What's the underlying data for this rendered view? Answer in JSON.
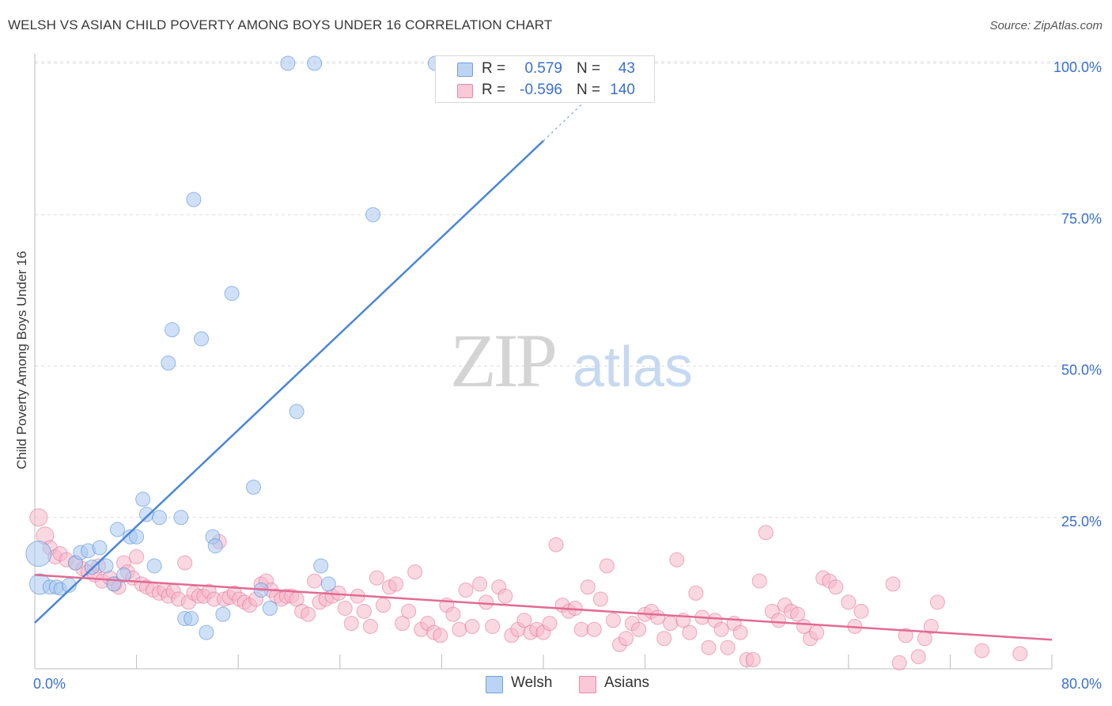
{
  "header": {
    "title": "WELSH VS ASIAN CHILD POVERTY AMONG BOYS UNDER 16 CORRELATION CHART",
    "source": "Source: ZipAtlas.com"
  },
  "watermark": {
    "zip": "ZIP",
    "atlas": "atlas"
  },
  "stats": {
    "welsh": {
      "r_label": "R =",
      "r_value": "0.579",
      "n_label": "N =",
      "n_value": "43",
      "color": "#a9c8f0"
    },
    "asians": {
      "r_label": "R =",
      "r_value": "-0.596",
      "n_label": "N =",
      "n_value": "140",
      "color": "#f6b8cb"
    }
  },
  "legend": {
    "welsh": "Welsh",
    "asians": "Asians"
  },
  "chart_data": {
    "type": "scatter",
    "title": "WELSH VS ASIAN CHILD POVERTY AMONG BOYS UNDER 16 CORRELATION CHART",
    "xlabel": "",
    "ylabel": "Child Poverty Among Boys Under 16",
    "xlim": [
      0,
      80
    ],
    "ylim": [
      0,
      105
    ],
    "x_tick_labels": [
      "0.0%",
      "80.0%"
    ],
    "y_tick_values": [
      25,
      50,
      75,
      100
    ],
    "y_tick_labels": [
      "25.0%",
      "50.0%",
      "75.0%",
      "100.0%"
    ],
    "grid": "horizontal dashed",
    "legend_position": "bottom-center",
    "series": [
      {
        "name": "Welsh",
        "color": "#4a86d8",
        "fill": "#a9c8f0",
        "trend": {
          "x": [
            0,
            40
          ],
          "y": [
            7.6,
            87.2
          ],
          "dashed_to": [
            45,
            97.2
          ]
        },
        "points": [
          [
            0.3,
            19,
            16
          ],
          [
            0.4,
            14,
            13
          ],
          [
            1.2,
            13.5,
            9
          ],
          [
            1.7,
            13.5,
            9
          ],
          [
            2.0,
            13.2,
            8
          ],
          [
            2.7,
            13.8,
            9
          ],
          [
            3.2,
            17.5,
            9
          ],
          [
            3.6,
            19.2,
            9
          ],
          [
            4.2,
            19.5,
            9
          ],
          [
            4.5,
            16.8,
            9
          ],
          [
            5.1,
            20.0,
            9
          ],
          [
            5.6,
            17.0,
            9
          ],
          [
            6.2,
            14.0,
            9
          ],
          [
            6.5,
            23.0,
            9
          ],
          [
            7.0,
            15.5,
            9
          ],
          [
            7.5,
            21.8,
            9
          ],
          [
            8.0,
            21.8,
            9
          ],
          [
            8.5,
            28.0,
            9
          ],
          [
            8.8,
            25.5,
            9
          ],
          [
            9.4,
            17.0,
            9
          ],
          [
            9.8,
            25.0,
            9
          ],
          [
            10.5,
            50.5,
            9
          ],
          [
            10.8,
            56.0,
            9
          ],
          [
            11.5,
            25.0,
            9
          ],
          [
            11.8,
            8.3,
            9
          ],
          [
            12.3,
            8.3,
            9
          ],
          [
            12.5,
            77.5,
            9
          ],
          [
            13.1,
            54.5,
            9
          ],
          [
            13.5,
            6.0,
            9
          ],
          [
            14.0,
            21.8,
            9
          ],
          [
            14.2,
            20.3,
            9
          ],
          [
            14.8,
            9.0,
            9
          ],
          [
            15.5,
            62.0,
            9
          ],
          [
            17.2,
            30.0,
            9
          ],
          [
            17.8,
            13.0,
            9
          ],
          [
            18.5,
            10.0,
            9
          ],
          [
            19.9,
            100.0,
            9
          ],
          [
            20.6,
            42.5,
            9
          ],
          [
            22.0,
            100.0,
            9
          ],
          [
            23.1,
            14.0,
            9
          ],
          [
            22.5,
            17.0,
            9
          ],
          [
            26.6,
            75.0,
            9
          ],
          [
            31.5,
            100.0,
            9
          ]
        ]
      },
      {
        "name": "Asians",
        "color": "#e26b93",
        "fill": "#f6b8cb",
        "trend": {
          "x": [
            0,
            80
          ],
          "y": [
            15.5,
            4.8
          ]
        },
        "points": [
          [
            0.3,
            25.0,
            11
          ],
          [
            0.8,
            22.0,
            11
          ],
          [
            1.2,
            20.0,
            9
          ],
          [
            1.6,
            18.5,
            9
          ],
          [
            2.0,
            19.0,
            9
          ],
          [
            2.5,
            18.0,
            9
          ],
          [
            3.2,
            17.5,
            9
          ],
          [
            3.8,
            16.5,
            9
          ],
          [
            4.2,
            16.0,
            9
          ],
          [
            4.7,
            15.5,
            9
          ],
          [
            5.0,
            17.0,
            9
          ],
          [
            5.3,
            14.5,
            9
          ],
          [
            5.9,
            15.0,
            9
          ],
          [
            6.3,
            14.0,
            9
          ],
          [
            6.6,
            13.5,
            9
          ],
          [
            7.0,
            17.5,
            9
          ],
          [
            7.3,
            16.0,
            9
          ],
          [
            7.7,
            15.0,
            9
          ],
          [
            8.0,
            18.5,
            9
          ],
          [
            8.4,
            14.0,
            9
          ],
          [
            8.8,
            13.5,
            9
          ],
          [
            9.3,
            13.0,
            9
          ],
          [
            9.8,
            12.5,
            9
          ],
          [
            10.2,
            13.0,
            9
          ],
          [
            10.5,
            12.0,
            9
          ],
          [
            10.9,
            12.8,
            9
          ],
          [
            11.3,
            11.5,
            9
          ],
          [
            11.8,
            17.5,
            9
          ],
          [
            12.1,
            11.0,
            9
          ],
          [
            12.5,
            12.5,
            9
          ],
          [
            12.9,
            12.0,
            9
          ],
          [
            13.3,
            12.0,
            9
          ],
          [
            13.7,
            12.8,
            9
          ],
          [
            14.1,
            11.5,
            9
          ],
          [
            14.5,
            21.0,
            9
          ],
          [
            14.9,
            11.5,
            9
          ],
          [
            15.3,
            11.8,
            9
          ],
          [
            15.7,
            12.5,
            9
          ],
          [
            16.1,
            11.5,
            9
          ],
          [
            16.5,
            11.0,
            9
          ],
          [
            16.9,
            10.5,
            9
          ],
          [
            17.4,
            11.5,
            9
          ],
          [
            17.8,
            14.0,
            9
          ],
          [
            18.2,
            14.5,
            9
          ],
          [
            18.6,
            13.0,
            9
          ],
          [
            19.0,
            12.0,
            9
          ],
          [
            19.4,
            11.5,
            9
          ],
          [
            19.8,
            12.0,
            9
          ],
          [
            20.2,
            12.0,
            9
          ],
          [
            20.6,
            11.5,
            9
          ],
          [
            21.0,
            9.5,
            9
          ],
          [
            21.5,
            9.0,
            9
          ],
          [
            22.0,
            14.5,
            9
          ],
          [
            22.4,
            11.0,
            9
          ],
          [
            22.9,
            11.5,
            9
          ],
          [
            23.4,
            12.0,
            9
          ],
          [
            23.9,
            12.5,
            9
          ],
          [
            24.4,
            10.0,
            9
          ],
          [
            24.9,
            7.5,
            9
          ],
          [
            25.4,
            12.0,
            9
          ],
          [
            25.9,
            9.5,
            9
          ],
          [
            26.4,
            7.0,
            9
          ],
          [
            26.9,
            15.0,
            9
          ],
          [
            27.4,
            10.5,
            9
          ],
          [
            27.9,
            13.5,
            9
          ],
          [
            28.4,
            14.0,
            9
          ],
          [
            28.9,
            7.5,
            9
          ],
          [
            29.4,
            9.5,
            9
          ],
          [
            29.9,
            16.0,
            9
          ],
          [
            30.4,
            6.5,
            9
          ],
          [
            30.9,
            7.5,
            9
          ],
          [
            31.4,
            6.0,
            9
          ],
          [
            31.9,
            5.5,
            9
          ],
          [
            32.4,
            10.5,
            9
          ],
          [
            32.9,
            9.0,
            9
          ],
          [
            33.4,
            6.5,
            9
          ],
          [
            33.9,
            13.0,
            9
          ],
          [
            34.4,
            7.0,
            9
          ],
          [
            35.0,
            14.0,
            9
          ],
          [
            35.5,
            11.0,
            9
          ],
          [
            36.0,
            7.0,
            9
          ],
          [
            36.5,
            13.5,
            9
          ],
          [
            37.0,
            12.0,
            9
          ],
          [
            37.5,
            5.5,
            9
          ],
          [
            38.0,
            6.5,
            9
          ],
          [
            38.5,
            8.0,
            9
          ],
          [
            39.0,
            6.0,
            9
          ],
          [
            39.5,
            6.5,
            9
          ],
          [
            40.0,
            6.0,
            9
          ],
          [
            40.5,
            7.5,
            9
          ],
          [
            41.0,
            20.5,
            9
          ],
          [
            41.5,
            10.5,
            9
          ],
          [
            42.0,
            9.5,
            9
          ],
          [
            42.5,
            10.0,
            9
          ],
          [
            43.0,
            6.5,
            9
          ],
          [
            43.5,
            13.5,
            9
          ],
          [
            44.0,
            6.5,
            9
          ],
          [
            44.5,
            11.5,
            9
          ],
          [
            45.0,
            17.0,
            9
          ],
          [
            45.5,
            8.0,
            9
          ],
          [
            46.0,
            4.0,
            9
          ],
          [
            46.5,
            5.0,
            9
          ],
          [
            47.0,
            7.5,
            9
          ],
          [
            47.5,
            6.5,
            9
          ],
          [
            48.0,
            9.0,
            9
          ],
          [
            48.5,
            9.5,
            9
          ],
          [
            49.0,
            8.5,
            9
          ],
          [
            49.5,
            5.0,
            9
          ],
          [
            50.0,
            7.5,
            9
          ],
          [
            50.5,
            18.0,
            9
          ],
          [
            51.0,
            8.0,
            9
          ],
          [
            51.5,
            6.0,
            9
          ],
          [
            52.0,
            12.5,
            9
          ],
          [
            52.5,
            8.5,
            9
          ],
          [
            53.0,
            3.5,
            9
          ],
          [
            53.5,
            8.0,
            9
          ],
          [
            54.0,
            6.5,
            9
          ],
          [
            54.5,
            3.5,
            9
          ],
          [
            55.0,
            7.5,
            9
          ],
          [
            55.5,
            6.0,
            9
          ],
          [
            56.0,
            1.5,
            9
          ],
          [
            56.5,
            1.5,
            9
          ],
          [
            57.0,
            14.5,
            9
          ],
          [
            57.5,
            22.5,
            9
          ],
          [
            58.0,
            9.5,
            9
          ],
          [
            58.5,
            8.0,
            9
          ],
          [
            59.0,
            10.5,
            9
          ],
          [
            59.5,
            9.5,
            9
          ],
          [
            60.0,
            9.0,
            9
          ],
          [
            60.5,
            7.0,
            9
          ],
          [
            61.0,
            5.0,
            9
          ],
          [
            61.5,
            6.0,
            9
          ],
          [
            62.0,
            15.0,
            9
          ],
          [
            62.5,
            14.5,
            9
          ],
          [
            63.0,
            13.5,
            9
          ],
          [
            64.0,
            11.0,
            9
          ],
          [
            64.5,
            7.0,
            9
          ],
          [
            65.0,
            9.5,
            9
          ],
          [
            67.5,
            14.0,
            9
          ],
          [
            68.5,
            5.5,
            9
          ],
          [
            68.0,
            1.0,
            9
          ],
          [
            69.5,
            2.0,
            9
          ],
          [
            70.0,
            5.0,
            9
          ],
          [
            70.5,
            7.0,
            9
          ],
          [
            71.0,
            11.0,
            9
          ],
          [
            74.5,
            3.0,
            9
          ],
          [
            77.5,
            2.5,
            9
          ]
        ]
      }
    ]
  }
}
